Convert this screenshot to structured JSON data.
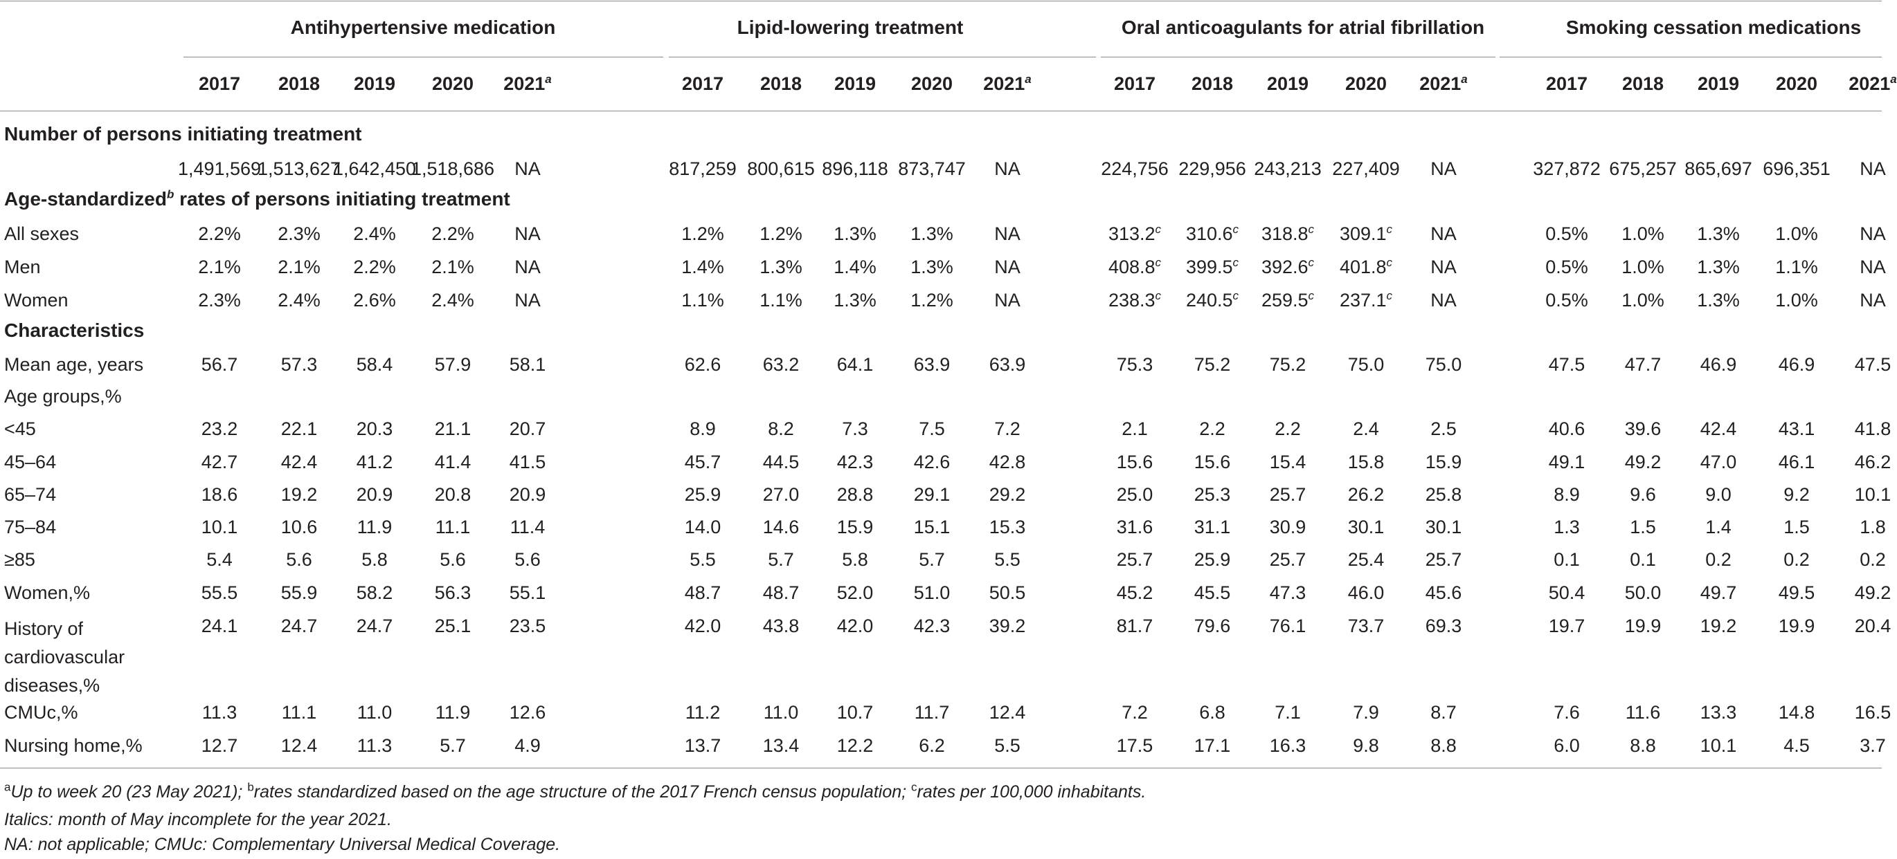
{
  "groups": [
    "Antihypertensive medication",
    "Lipid-lowering treatment",
    "Oral anticoagulants for atrial fibrillation",
    "Smoking cessation medications"
  ],
  "years": [
    "2017",
    "2018",
    "2019",
    "2020",
    "2021"
  ],
  "year_footnote": "a",
  "sections": {
    "persons": "Number of persons initiating treatment",
    "rates_pre": "Age-standardized",
    "rates_sup": "b",
    "rates_post": " rates of persons initiating treatment",
    "characteristics": "Characteristics"
  },
  "rows": [
    {
      "label": "",
      "values": [
        "1,491,569",
        "1,513,627",
        "1,642,450",
        "1,518,686",
        "NA",
        "817,259",
        "800,615",
        "896,118",
        "873,747",
        "NA",
        "224,756",
        "229,956",
        "243,213",
        "227,409",
        "NA",
        "327,872",
        "675,257",
        "865,697",
        "696,351",
        "NA"
      ]
    },
    {
      "label": "All sexes",
      "values": [
        "2.2%",
        "2.3%",
        "2.4%",
        "2.2%",
        "NA",
        "1.2%",
        "1.2%",
        "1.3%",
        "1.3%",
        "NA",
        "313.2",
        "310.6",
        "318.8",
        "309.1",
        "NA",
        "0.5%",
        "1.0%",
        "1.3%",
        "1.0%",
        "NA"
      ]
    },
    {
      "label": "Men",
      "values": [
        "2.1%",
        "2.1%",
        "2.2%",
        "2.1%",
        "NA",
        "1.4%",
        "1.3%",
        "1.4%",
        "1.3%",
        "NA",
        "408.8",
        "399.5",
        "392.6",
        "401.8",
        "NA",
        "0.5%",
        "1.0%",
        "1.3%",
        "1.1%",
        "NA"
      ]
    },
    {
      "label": "Women",
      "values": [
        "2.3%",
        "2.4%",
        "2.6%",
        "2.4%",
        "NA",
        "1.1%",
        "1.1%",
        "1.3%",
        "1.2%",
        "NA",
        "238.3",
        "240.5",
        "259.5",
        "237.1",
        "NA",
        "0.5%",
        "1.0%",
        "1.3%",
        "1.0%",
        "NA"
      ]
    },
    {
      "label": "Mean age, years",
      "values": [
        "56.7",
        "57.3",
        "58.4",
        "57.9",
        "58.1",
        "62.6",
        "63.2",
        "64.1",
        "63.9",
        "63.9",
        "75.3",
        "75.2",
        "75.2",
        "75.0",
        "75.0",
        "47.5",
        "47.7",
        "46.9",
        "46.9",
        "47.5"
      ]
    },
    {
      "label": "Age groups,%",
      "values": []
    },
    {
      "label": "<45",
      "values": [
        "23.2",
        "22.1",
        "20.3",
        "21.1",
        "20.7",
        "8.9",
        "8.2",
        "7.3",
        "7.5",
        "7.2",
        "2.1",
        "2.2",
        "2.2",
        "2.4",
        "2.5",
        "40.6",
        "39.6",
        "42.4",
        "43.1",
        "41.8"
      ]
    },
    {
      "label": "45–64",
      "values": [
        "42.7",
        "42.4",
        "41.2",
        "41.4",
        "41.5",
        "45.7",
        "44.5",
        "42.3",
        "42.6",
        "42.8",
        "15.6",
        "15.6",
        "15.4",
        "15.8",
        "15.9",
        "49.1",
        "49.2",
        "47.0",
        "46.1",
        "46.2"
      ]
    },
    {
      "label": "65–74",
      "values": [
        "18.6",
        "19.2",
        "20.9",
        "20.8",
        "20.9",
        "25.9",
        "27.0",
        "28.8",
        "29.1",
        "29.2",
        "25.0",
        "25.3",
        "25.7",
        "26.2",
        "25.8",
        "8.9",
        "9.6",
        "9.0",
        "9.2",
        "10.1"
      ]
    },
    {
      "label": "75–84",
      "values": [
        "10.1",
        "10.6",
        "11.9",
        "11.1",
        "11.4",
        "14.0",
        "14.6",
        "15.9",
        "15.1",
        "15.3",
        "31.6",
        "31.1",
        "30.9",
        "30.1",
        "30.1",
        "1.3",
        "1.5",
        "1.4",
        "1.5",
        "1.8"
      ]
    },
    {
      "label": "≥85",
      "values": [
        "5.4",
        "5.6",
        "5.8",
        "5.6",
        "5.6",
        "5.5",
        "5.7",
        "5.8",
        "5.7",
        "5.5",
        "25.7",
        "25.9",
        "25.7",
        "25.4",
        "25.7",
        "0.1",
        "0.1",
        "0.2",
        "0.2",
        "0.2"
      ]
    },
    {
      "label": "Women,%",
      "values": [
        "55.5",
        "55.9",
        "58.2",
        "56.3",
        "55.1",
        "48.7",
        "48.7",
        "52.0",
        "51.0",
        "50.5",
        "45.2",
        "45.5",
        "47.3",
        "46.0",
        "45.6",
        "50.4",
        "50.0",
        "49.7",
        "49.5",
        "49.2"
      ]
    },
    {
      "label_lines": [
        "History of",
        "cardiovascular",
        "diseases,%"
      ],
      "values": [
        "24.1",
        "24.7",
        "24.7",
        "25.1",
        "23.5",
        "42.0",
        "43.8",
        "42.0",
        "42.3",
        "39.2",
        "81.7",
        "79.6",
        "76.1",
        "73.7",
        "69.3",
        "19.7",
        "19.9",
        "19.2",
        "19.9",
        "20.4"
      ]
    },
    {
      "label": "CMUc,%",
      "values": [
        "11.3",
        "11.1",
        "11.0",
        "11.9",
        "12.6",
        "11.2",
        "11.0",
        "10.7",
        "11.7",
        "12.4",
        "7.2",
        "6.8",
        "7.1",
        "7.9",
        "8.7",
        "7.6",
        "11.6",
        "13.3",
        "14.8",
        "16.5"
      ]
    },
    {
      "label": "Nursing home,%",
      "values": [
        "12.7",
        "12.4",
        "11.3",
        "5.7",
        "4.9",
        "13.7",
        "13.4",
        "12.2",
        "6.2",
        "5.5",
        "17.5",
        "17.1",
        "16.3",
        "9.8",
        "8.8",
        "6.0",
        "8.8",
        "10.1",
        "4.5",
        "3.7"
      ]
    }
  ],
  "rate_superscript": "c",
  "footnotes": {
    "line1": [
      {
        "sup": "a",
        "text": "Up to week 20 (23 May 2021); "
      },
      {
        "sup": "b",
        "text": "rates standardized based on the age structure of the 2017 French census population; "
      },
      {
        "sup": "c",
        "text": "rates per 100,000 inhabitants."
      }
    ],
    "line2": "Italics: month of May incomplete for the year 2021.",
    "line3": "NA: not applicable; CMUc: Complementary Universal Medical Coverage."
  }
}
